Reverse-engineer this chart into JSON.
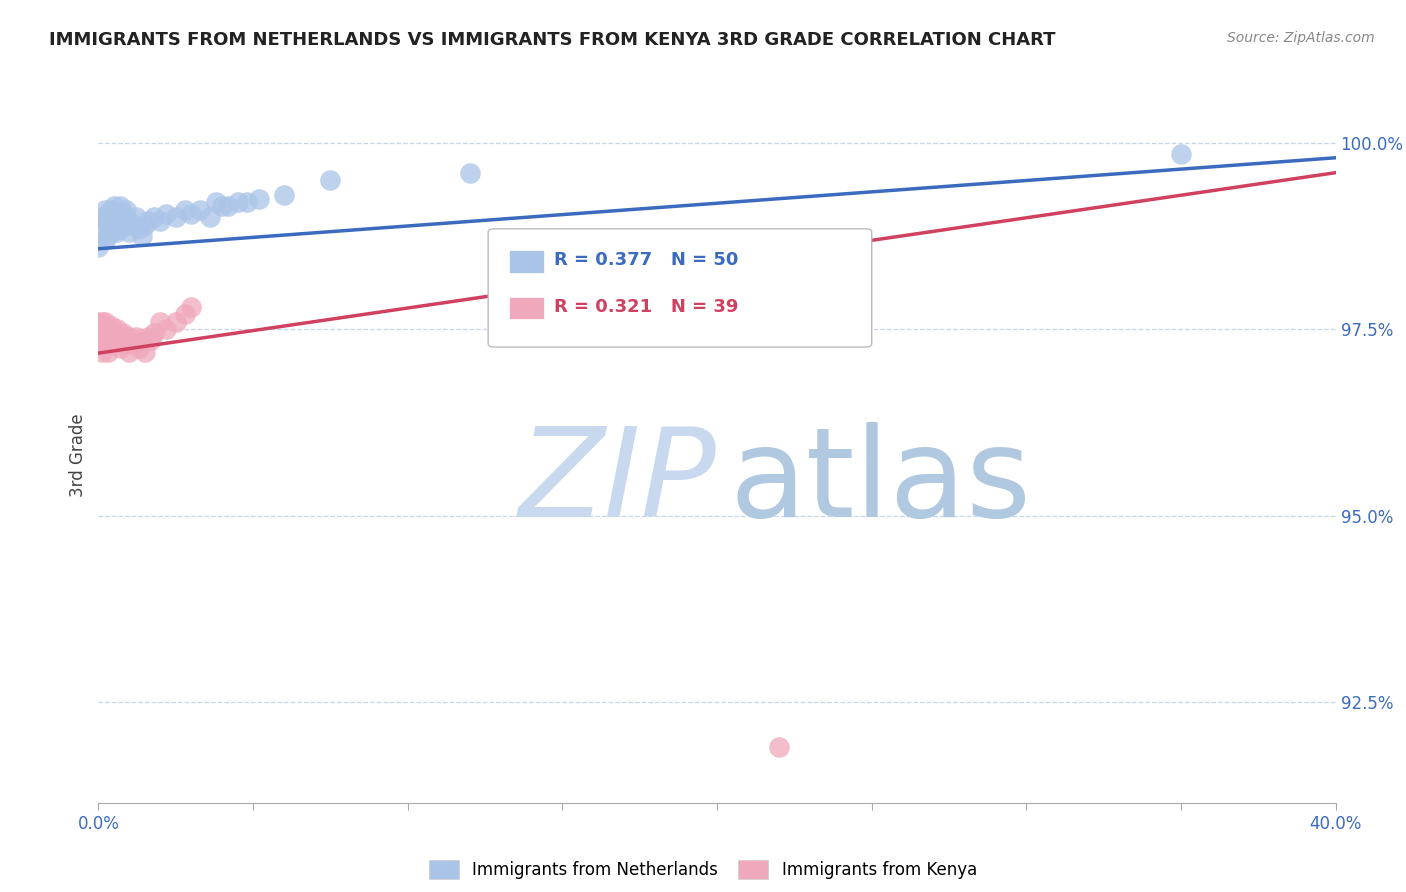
{
  "title": "IMMIGRANTS FROM NETHERLANDS VS IMMIGRANTS FROM KENYA 3RD GRADE CORRELATION CHART",
  "source": "Source: ZipAtlas.com",
  "ylabel_label": "3rd Grade",
  "legend_labels": [
    "Immigrants from Netherlands",
    "Immigrants from Kenya"
  ],
  "netherlands_color": "#aac4e8",
  "kenya_color": "#f0a8bc",
  "netherlands_line_color": "#3b6bbf",
  "kenya_line_color": "#d04060",
  "R_netherlands": 0.377,
  "N_netherlands": 50,
  "R_kenya": 0.321,
  "N_kenya": 39,
  "netherlands_x": [
    0.0,
    0.001,
    0.001,
    0.002,
    0.002,
    0.002,
    0.003,
    0.003,
    0.003,
    0.004,
    0.004,
    0.004,
    0.005,
    0.005,
    0.005,
    0.006,
    0.006,
    0.007,
    0.007,
    0.007,
    0.008,
    0.008,
    0.009,
    0.009,
    0.01,
    0.01,
    0.011,
    0.012,
    0.013,
    0.014,
    0.015,
    0.016,
    0.018,
    0.02,
    0.022,
    0.025,
    0.028,
    0.03,
    0.033,
    0.036,
    0.038,
    0.04,
    0.042,
    0.045,
    0.048,
    0.052,
    0.06,
    0.075,
    0.12,
    0.35
  ],
  "netherlands_y": [
    0.986,
    0.9885,
    0.99,
    0.987,
    0.9895,
    0.991,
    0.9875,
    0.989,
    0.9905,
    0.988,
    0.9895,
    0.991,
    0.9885,
    0.99,
    0.9915,
    0.988,
    0.9905,
    0.9885,
    0.99,
    0.9915,
    0.989,
    0.9905,
    0.9895,
    0.991,
    0.988,
    0.9895,
    0.989,
    0.99,
    0.9885,
    0.9875,
    0.989,
    0.9895,
    0.99,
    0.9895,
    0.9905,
    0.99,
    0.991,
    0.9905,
    0.991,
    0.99,
    0.992,
    0.9915,
    0.9915,
    0.992,
    0.992,
    0.9925,
    0.993,
    0.995,
    0.996,
    0.9985
  ],
  "kenya_x": [
    0.0,
    0.0,
    0.001,
    0.001,
    0.001,
    0.001,
    0.002,
    0.002,
    0.002,
    0.003,
    0.003,
    0.003,
    0.004,
    0.004,
    0.005,
    0.005,
    0.006,
    0.006,
    0.007,
    0.007,
    0.008,
    0.008,
    0.009,
    0.01,
    0.01,
    0.011,
    0.012,
    0.013,
    0.014,
    0.015,
    0.016,
    0.017,
    0.018,
    0.02,
    0.022,
    0.025,
    0.028,
    0.03,
    0.22
  ],
  "kenya_y": [
    0.975,
    0.976,
    0.972,
    0.9735,
    0.9745,
    0.976,
    0.973,
    0.9745,
    0.976,
    0.972,
    0.9735,
    0.975,
    0.974,
    0.9755,
    0.973,
    0.9745,
    0.9735,
    0.975,
    0.9725,
    0.974,
    0.973,
    0.9745,
    0.9735,
    0.972,
    0.974,
    0.973,
    0.974,
    0.9725,
    0.9735,
    0.972,
    0.974,
    0.9735,
    0.9745,
    0.976,
    0.975,
    0.976,
    0.977,
    0.978,
    0.919
  ],
  "nl_line_x": [
    0.0,
    0.4
  ],
  "nl_line_y": [
    0.9858,
    0.998
  ],
  "kn_line_x": [
    0.0,
    0.4
  ],
  "kn_line_y": [
    0.9718,
    0.996
  ],
  "xmin": 0.0,
  "xmax": 0.4,
  "ymin": 0.9115,
  "ymax": 1.0048,
  "ytick_vals": [
    0.925,
    0.95,
    0.975,
    1.0
  ],
  "ytick_labels": [
    "92.5%",
    "95.0%",
    "97.5%",
    "100.0%"
  ],
  "background_color": "#ffffff",
  "grid_color": "#c8d4e8",
  "watermark_zip_color": "#c8d8ee",
  "watermark_atlas_color": "#b0c8e0"
}
